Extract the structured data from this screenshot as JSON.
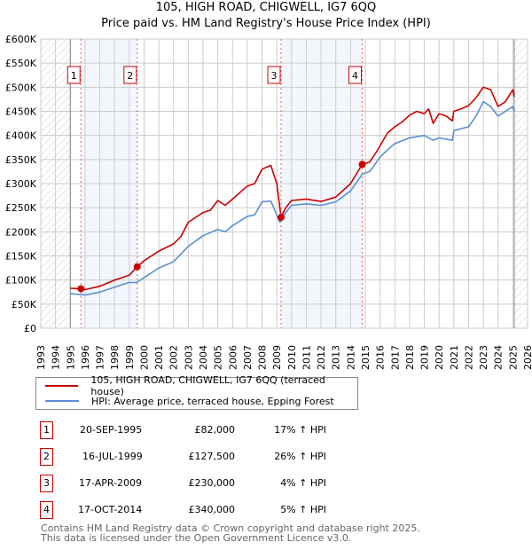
{
  "title": "105, HIGH ROAD, CHIGWELL, IG7 6QQ",
  "subtitle": "Price paid vs. HM Land Registry's House Price Index (HPI)",
  "chart_data": {
    "type": "line",
    "title": "105, HIGH ROAD, CHIGWELL, IG7 6QQ — Price paid vs. HM Land Registry's House Price Index (HPI)",
    "xlim": [
      1993,
      2026
    ],
    "ylim": [
      0,
      600000
    ],
    "yticks": [
      0,
      50000,
      100000,
      150000,
      200000,
      250000,
      300000,
      350000,
      400000,
      450000,
      500000,
      550000,
      600000
    ],
    "ytick_labels": [
      "£0",
      "£50K",
      "£100K",
      "£150K",
      "£200K",
      "£250K",
      "£300K",
      "£350K",
      "£400K",
      "£450K",
      "£500K",
      "£550K",
      "£600K"
    ],
    "xticks": [
      1993,
      1994,
      1995,
      1996,
      1997,
      1998,
      1999,
      2000,
      2001,
      2002,
      2003,
      2004,
      2005,
      2006,
      2007,
      2008,
      2009,
      2010,
      2011,
      2012,
      2013,
      2014,
      2015,
      2016,
      2017,
      2018,
      2019,
      2020,
      2021,
      2022,
      2023,
      2024,
      2025,
      2026
    ],
    "grid": true,
    "data_range": [
      1995,
      2025.1
    ],
    "series": [
      {
        "name": "105, HIGH ROAD, CHIGWELL, IG7 6QQ (terraced house)",
        "color": "#cc0000",
        "x": [
          1995,
          1995.72,
          1996,
          1997,
          1998,
          1999,
          1999.54,
          2000,
          2001,
          2002,
          2002.5,
          2003,
          2004,
          2004.5,
          2005,
          2005.5,
          2006,
          2007,
          2007.5,
          2008,
          2008.6,
          2008.8,
          2009,
          2009.29,
          2009.6,
          2010,
          2011,
          2012,
          2013,
          2014,
          2014.79,
          2015.3,
          2015.8,
          2016.5,
          2017,
          2017.5,
          2018,
          2018.5,
          2019,
          2019.3,
          2019.6,
          2020,
          2020.5,
          2020.9,
          2021,
          2021.5,
          2022,
          2022.5,
          2023,
          2023.5,
          2024,
          2024.5,
          2025,
          2025.1
        ],
        "values": [
          83000,
          82000,
          80000,
          87000,
          100000,
          110000,
          127500,
          140000,
          160000,
          175000,
          190000,
          220000,
          240000,
          245000,
          265000,
          255000,
          268000,
          295000,
          300000,
          330000,
          338000,
          318000,
          300000,
          230000,
          250000,
          265000,
          268000,
          263000,
          272000,
          300000,
          340000,
          345000,
          368000,
          405000,
          418000,
          428000,
          442000,
          450000,
          445000,
          455000,
          425000,
          445000,
          440000,
          430000,
          450000,
          455000,
          462000,
          478000,
          500000,
          495000,
          460000,
          470000,
          495000,
          480000
        ]
      },
      {
        "name": "HPI: Average price, terraced house, Epping Forest",
        "color": "#5b8fd4",
        "x": [
          1995,
          1996,
          1997,
          1998,
          1999,
          1999.5,
          2000,
          2001,
          2002,
          2003,
          2004,
          2005,
          2005.5,
          2006,
          2007,
          2007.5,
          2008,
          2008.6,
          2009.2,
          2009.6,
          2010,
          2011,
          2012,
          2013,
          2014,
          2014.8,
          2015.3,
          2016,
          2016.5,
          2017,
          2018,
          2019,
          2019.6,
          2020,
          2020.9,
          2021,
          2022,
          2022.5,
          2023,
          2023.5,
          2024,
          2025,
          2025.1
        ],
        "values": [
          72000,
          69000,
          75000,
          85000,
          95000,
          95000,
          105000,
          125000,
          138000,
          170000,
          192000,
          205000,
          200000,
          213000,
          232000,
          235000,
          262000,
          264000,
          220000,
          240000,
          255000,
          258000,
          255000,
          262000,
          285000,
          320000,
          325000,
          355000,
          370000,
          383000,
          395000,
          400000,
          390000,
          395000,
          390000,
          410000,
          418000,
          440000,
          470000,
          460000,
          440000,
          460000,
          450000
        ]
      }
    ],
    "sales": [
      {
        "label": "1",
        "x": 1995.72,
        "value": 82000
      },
      {
        "label": "2",
        "x": 1999.54,
        "value": 127500
      },
      {
        "label": "3",
        "x": 2009.29,
        "value": 230000
      },
      {
        "label": "4",
        "x": 2014.79,
        "value": 340000
      }
    ],
    "legend_position": "below"
  },
  "legend": [
    {
      "label": "105, HIGH ROAD, CHIGWELL, IG7 6QQ (terraced house)",
      "color": "#cc0000"
    },
    {
      "label": "HPI: Average price, terraced house, Epping Forest",
      "color": "#5b8fd4"
    }
  ],
  "table": [
    {
      "num": "1",
      "date": "20-SEP-1995",
      "price": "£82,000",
      "hpi": "17% ↑ HPI"
    },
    {
      "num": "2",
      "date": "16-JUL-1999",
      "price": "£127,500",
      "hpi": "26% ↑ HPI"
    },
    {
      "num": "3",
      "date": "17-APR-2009",
      "price": "£230,000",
      "hpi": "4% ↑ HPI"
    },
    {
      "num": "4",
      "date": "17-OCT-2014",
      "price": "£340,000",
      "hpi": "5% ↑ HPI"
    }
  ],
  "footer": {
    "line1": "Contains HM Land Registry data © Crown copyright and database right 2025.",
    "line2": "This data is licensed under the Open Government Licence v3.0."
  }
}
